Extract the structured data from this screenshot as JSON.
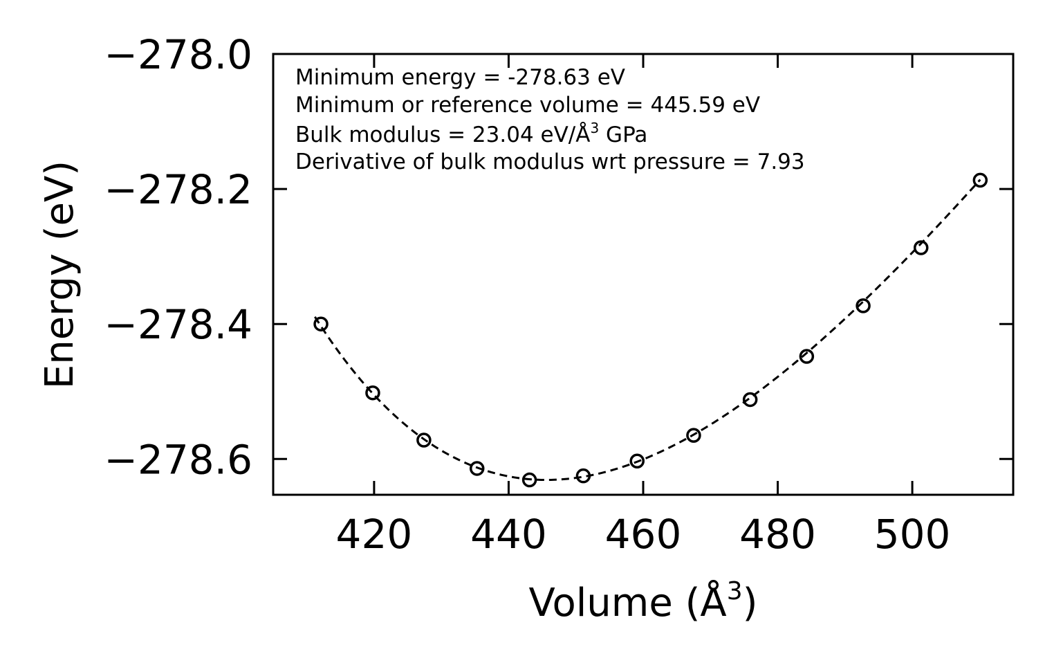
{
  "chart_data": {
    "type": "scatter",
    "title": "",
    "xlabel": "Volume (Å",
    "xlabel_sup": "3",
    "xlabel_end": ")",
    "ylabel": "Energy (eV)",
    "xlim": [
      405,
      515
    ],
    "ylim": [
      -278.653,
      -278.0
    ],
    "xticks": [
      420,
      440,
      460,
      480,
      500
    ],
    "yticks": [
      -278.0,
      -278.2,
      -278.4,
      -278.6
    ],
    "ytick_labels": [
      "−278.0",
      "−278.2",
      "−278.4",
      "−278.6"
    ],
    "series": [
      {
        "name": "data",
        "marker": "open-circle",
        "x": [
          412.1,
          419.8,
          427.4,
          435.3,
          443.1,
          451.1,
          459.1,
          467.5,
          475.9,
          484.3,
          492.7,
          501.3,
          510.1
        ],
        "y": [
          -278.4,
          -278.502,
          -278.572,
          -278.614,
          -278.631,
          -278.625,
          -278.603,
          -278.565,
          -278.512,
          -278.448,
          -278.373,
          -278.287,
          -278.187
        ]
      },
      {
        "name": "fit",
        "style": "dashed",
        "model": "birch-murnaghan",
        "E0": -278.631,
        "V0": 445.59,
        "B0": 23.04,
        "B0_prime": 7.93,
        "xrange": [
          411.2,
          510.1
        ]
      }
    ],
    "annotations": [
      "Minimum energy = -278.63 eV",
      "Minimum or reference volume = 445.59 eV",
      "Bulk modulus = 23.04 eV/Å",
      "3",
      " GPa",
      "Derivative of bulk modulus wrt pressure = 7.93"
    ],
    "grid": false,
    "legend": "none"
  }
}
